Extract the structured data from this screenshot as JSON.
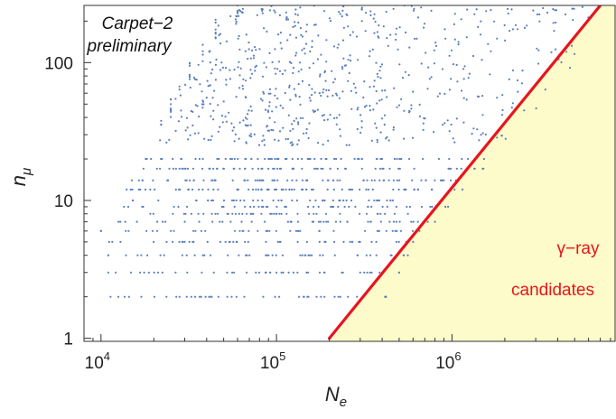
{
  "chart_data": {
    "type": "scatter",
    "xscale": "log",
    "yscale": "log",
    "xlim": [
      8000,
      8500000
    ],
    "ylim": [
      0.95,
      260
    ],
    "xlabel": "N",
    "xlabel_sub": "e",
    "ylabel": "n",
    "ylabel_sub": "μ",
    "x_ticks": [
      {
        "value": 10000,
        "base": "10",
        "exp": "4"
      },
      {
        "value": 100000,
        "base": "10",
        "exp": "5"
      },
      {
        "value": 1000000,
        "base": "10",
        "exp": "6"
      }
    ],
    "y_ticks": [
      {
        "value": 1,
        "label": "1"
      },
      {
        "value": 10,
        "label": "10"
      },
      {
        "value": 100,
        "label": "100"
      }
    ],
    "annotations": {
      "experiment_line1": "Carpet−2",
      "experiment_line2": "preliminary",
      "region_line1": "γ−ray",
      "region_line2": "candidates"
    },
    "cut_line": {
      "points": [
        [
          200000,
          1
        ],
        [
          7000000,
          260
        ]
      ],
      "color": "#e8141c"
    },
    "candidate_region_color": "#fdfbc9",
    "point_color": "#5b7fbd",
    "series": [
      {
        "points_by_muon_count": [
          {
            "n_mu": 2,
            "ne_min": 11000,
            "ne_max": 420000
          },
          {
            "n_mu": 3,
            "ne_min": 11000,
            "ne_max": 500000
          },
          {
            "n_mu": 4,
            "ne_min": 11000,
            "ne_max": 560000
          },
          {
            "n_mu": 5,
            "ne_min": 10000,
            "ne_max": 650000
          },
          {
            "n_mu": 6,
            "ne_min": 10000,
            "ne_max": 720000
          },
          {
            "n_mu": 7,
            "ne_min": 12000,
            "ne_max": 800000
          },
          {
            "n_mu": 8,
            "ne_min": 12000,
            "ne_max": 880000
          },
          {
            "n_mu": 9,
            "ne_min": 13000,
            "ne_max": 950000
          },
          {
            "n_mu": 10,
            "ne_min": 13000,
            "ne_max": 1050000
          },
          {
            "n_mu": 12,
            "ne_min": 14000,
            "ne_max": 1200000
          },
          {
            "n_mu": 14,
            "ne_min": 15000,
            "ne_max": 1350000
          },
          {
            "n_mu": 17,
            "ne_min": 17000,
            "ne_max": 1550000
          },
          {
            "n_mu": 20,
            "ne_min": 18000,
            "ne_max": 1800000
          },
          {
            "n_mu": 25,
            "ne_min": 20000,
            "ne_max": 2100000
          },
          {
            "n_mu": 32,
            "ne_min": 22000,
            "ne_max": 2600000
          },
          {
            "n_mu": 40,
            "ne_min": 25000,
            "ne_max": 3100000
          },
          {
            "n_mu": 55,
            "ne_min": 28000,
            "ne_max": 3800000
          },
          {
            "n_mu": 75,
            "ne_min": 32000,
            "ne_max": 4800000
          },
          {
            "n_mu": 100,
            "ne_min": 38000,
            "ne_max": 5800000
          },
          {
            "n_mu": 150,
            "ne_min": 45000,
            "ne_max": 7500000
          },
          {
            "n_mu": 220,
            "ne_min": 60000,
            "ne_max": 8500000
          }
        ]
      }
    ]
  }
}
